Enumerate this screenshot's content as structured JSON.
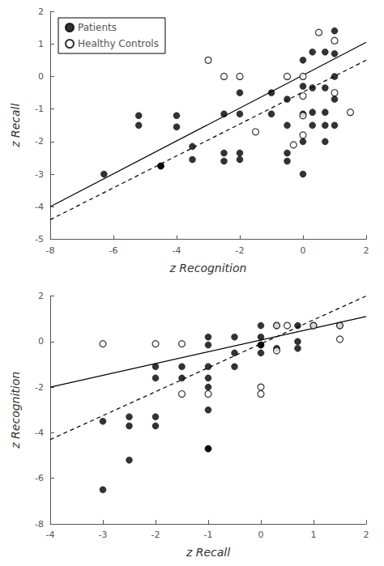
{
  "chart_data": [
    {
      "type": "scatter",
      "xlabel": "z Recognition",
      "ylabel": "z Recall",
      "xlim": [
        -8,
        2
      ],
      "ylim": [
        -5,
        2
      ],
      "xticks": [
        -8,
        -6,
        -4,
        -2,
        0,
        2
      ],
      "yticks": [
        -5,
        -4,
        -3,
        -2,
        -1,
        0,
        1,
        2
      ],
      "grid": false,
      "legend": "upper left",
      "series": [
        {
          "name": "Patients",
          "type": "scatter",
          "marker": "circle",
          "color": "#000000",
          "values": [
            [
              -6.3,
              -3.0
            ],
            [
              -5.2,
              -1.2
            ],
            [
              -5.2,
              -1.5
            ],
            [
              -4.5,
              -2.75
            ],
            [
              -4.5,
              -2.75
            ],
            [
              -4.0,
              -1.2
            ],
            [
              -4.0,
              -1.55
            ],
            [
              -3.5,
              -2.15
            ],
            [
              -3.5,
              -2.55
            ],
            [
              -2.5,
              -1.15
            ],
            [
              -2.5,
              -2.35
            ],
            [
              -2.5,
              -2.6
            ],
            [
              -2.0,
              -0.5
            ],
            [
              -2.0,
              -1.15
            ],
            [
              -2.0,
              -2.35
            ],
            [
              -2.0,
              -2.55
            ],
            [
              -1.0,
              -0.5
            ],
            [
              -1.0,
              -1.15
            ],
            [
              -0.5,
              -0.7
            ],
            [
              -0.5,
              -1.5
            ],
            [
              -0.5,
              -2.35
            ],
            [
              -0.5,
              -2.6
            ],
            [
              0.0,
              0.5
            ],
            [
              0.0,
              -0.3
            ],
            [
              0.0,
              -1.15
            ],
            [
              0.0,
              -2.0
            ],
            [
              0.0,
              -3.0
            ],
            [
              0.3,
              0.75
            ],
            [
              0.3,
              -0.35
            ],
            [
              0.3,
              -1.1
            ],
            [
              0.3,
              -1.5
            ],
            [
              0.7,
              0.75
            ],
            [
              0.7,
              -0.35
            ],
            [
              0.7,
              -1.1
            ],
            [
              0.7,
              -1.5
            ],
            [
              0.7,
              -2.0
            ],
            [
              1.0,
              1.4
            ],
            [
              1.0,
              0.7
            ],
            [
              1.0,
              0.0
            ],
            [
              1.0,
              -0.7
            ],
            [
              1.0,
              -1.5
            ]
          ]
        },
        {
          "name": "Healthy Controls",
          "type": "scatter",
          "marker": "open_circle",
          "color": "#000000",
          "values": [
            [
              -3.0,
              0.5
            ],
            [
              -2.5,
              0.0
            ],
            [
              -2.0,
              0.0
            ],
            [
              -1.5,
              -1.7
            ],
            [
              -0.5,
              0.0
            ],
            [
              -0.3,
              -2.1
            ],
            [
              0.0,
              0.0
            ],
            [
              0.0,
              -0.6
            ],
            [
              0.0,
              -1.2
            ],
            [
              0.0,
              -1.8
            ],
            [
              0.5,
              1.35
            ],
            [
              1.0,
              1.1
            ],
            [
              1.0,
              -0.5
            ],
            [
              1.5,
              -1.1
            ]
          ]
        },
        {
          "type": "line",
          "line_style": "solid",
          "color": "#000000",
          "values": [
            [
              -8,
              -4.0
            ],
            [
              2,
              1.05
            ]
          ]
        },
        {
          "type": "line",
          "line_style": "dashed",
          "color": "#000000",
          "values": [
            [
              -8,
              -4.4
            ],
            [
              2,
              0.5
            ]
          ]
        }
      ]
    },
    {
      "type": "scatter",
      "xlabel": "z Recall",
      "ylabel": "z Recognition",
      "xlim": [
        -4,
        2
      ],
      "ylim": [
        -8,
        2
      ],
      "xticks": [
        -4,
        -3,
        -2,
        -1,
        0,
        1,
        2
      ],
      "yticks": [
        -8,
        -6,
        -4,
        -2,
        0,
        2
      ],
      "grid": false,
      "series": [
        {
          "name": "Patients",
          "type": "scatter",
          "marker": "circle",
          "color": "#000000",
          "values": [
            [
              -3.0,
              -6.5
            ],
            [
              -3.0,
              -3.5
            ],
            [
              -2.5,
              -5.2
            ],
            [
              -2.5,
              -3.7
            ],
            [
              -2.5,
              -3.3
            ],
            [
              -2.0,
              -3.7
            ],
            [
              -2.0,
              -3.3
            ],
            [
              -2.0,
              -1.6
            ],
            [
              -2.0,
              -1.1
            ],
            [
              -1.5,
              -1.6
            ],
            [
              -1.5,
              -1.1
            ],
            [
              -1.0,
              -4.7
            ],
            [
              -1.0,
              -4.7
            ],
            [
              -1.0,
              -3.0
            ],
            [
              -1.0,
              -2.0
            ],
            [
              -1.0,
              -1.6
            ],
            [
              -1.0,
              -1.1
            ],
            [
              -1.0,
              -0.15
            ],
            [
              -1.0,
              0.2
            ],
            [
              -0.5,
              -1.1
            ],
            [
              -0.5,
              -0.5
            ],
            [
              -0.5,
              0.2
            ],
            [
              0.0,
              -0.5
            ],
            [
              0.0,
              -0.15
            ],
            [
              0.0,
              0.2
            ],
            [
              0.0,
              -0.15
            ],
            [
              0.0,
              0.7
            ],
            [
              0.3,
              -0.3
            ],
            [
              0.3,
              0.7
            ],
            [
              0.7,
              0.7
            ],
            [
              0.7,
              0.0
            ],
            [
              0.7,
              -0.3
            ],
            [
              1.0,
              0.7
            ],
            [
              1.5,
              0.7
            ]
          ]
        },
        {
          "name": "Healthy Controls",
          "type": "scatter",
          "marker": "open_circle",
          "color": "#000000",
          "values": [
            [
              -3.0,
              -0.1
            ],
            [
              -2.0,
              -0.1
            ],
            [
              -1.5,
              -0.1
            ],
            [
              -1.5,
              -2.3
            ],
            [
              -1.0,
              -2.3
            ],
            [
              0.0,
              -2.0
            ],
            [
              0.0,
              -2.3
            ],
            [
              0.3,
              0.7
            ],
            [
              0.3,
              -0.4
            ],
            [
              0.5,
              0.7
            ],
            [
              1.0,
              0.7
            ],
            [
              1.5,
              0.7
            ],
            [
              1.5,
              0.1
            ]
          ]
        },
        {
          "type": "line",
          "line_style": "solid",
          "color": "#000000",
          "values": [
            [
              -4,
              -2.0
            ],
            [
              2,
              1.1
            ]
          ]
        },
        {
          "type": "line",
          "line_style": "dashed",
          "color": "#000000",
          "values": [
            [
              -4,
              -4.3
            ],
            [
              2,
              2.0
            ]
          ]
        }
      ]
    }
  ]
}
